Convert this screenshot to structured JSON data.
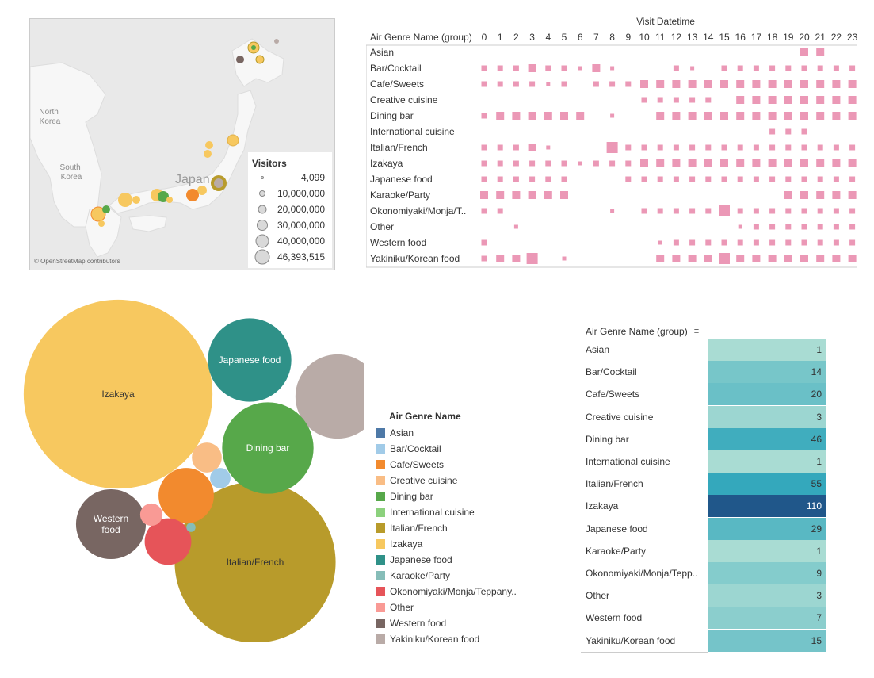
{
  "map": {
    "labels": {
      "north_korea": "North\nKorea",
      "south_korea": "South\nKorea",
      "japan": "Japan"
    },
    "attribution": "© OpenStreetMap contributors",
    "size_legend": {
      "title": "Visitors",
      "items": [
        "4,099",
        "10,000,000",
        "20,000,000",
        "30,000,000",
        "40,000,000",
        "46,393,515"
      ]
    }
  },
  "chart_data": [
    {
      "type": "heatmap",
      "title": "Visit Datetime",
      "row_header": "Air Genre Name (group)",
      "x": [
        "0",
        "1",
        "2",
        "3",
        "4",
        "5",
        "6",
        "7",
        "8",
        "9",
        "10",
        "11",
        "12",
        "13",
        "14",
        "15",
        "16",
        "17",
        "18",
        "19",
        "20",
        "21",
        "22",
        "23"
      ],
      "rows": [
        {
          "name": "Asian",
          "values": [
            0,
            0,
            0,
            0,
            0,
            0,
            0,
            0,
            0,
            0,
            0,
            0,
            0,
            0,
            0,
            0,
            0,
            0,
            0,
            0,
            3,
            3,
            0,
            0
          ]
        },
        {
          "name": "Bar/Cocktail",
          "values": [
            2,
            2,
            2,
            3,
            2,
            2,
            1,
            3,
            1,
            0,
            0,
            0,
            2,
            1,
            0,
            2,
            2,
            2,
            2,
            2,
            2,
            2,
            2,
            2
          ]
        },
        {
          "name": "Cafe/Sweets",
          "values": [
            2,
            2,
            2,
            2,
            1,
            2,
            0,
            2,
            2,
            2,
            3,
            3,
            3,
            3,
            3,
            3,
            3,
            3,
            3,
            3,
            3,
            3,
            3,
            3
          ]
        },
        {
          "name": "Creative cuisine",
          "values": [
            0,
            0,
            0,
            0,
            0,
            0,
            0,
            0,
            0,
            0,
            2,
            2,
            2,
            2,
            2,
            0,
            3,
            3,
            3,
            3,
            3,
            3,
            3,
            3
          ]
        },
        {
          "name": "Dining bar",
          "values": [
            2,
            3,
            3,
            3,
            3,
            3,
            3,
            0,
            1,
            0,
            0,
            3,
            3,
            3,
            3,
            3,
            3,
            3,
            3,
            3,
            3,
            3,
            3,
            3
          ]
        },
        {
          "name": "International cuisine",
          "values": [
            0,
            0,
            0,
            0,
            0,
            0,
            0,
            0,
            0,
            0,
            0,
            0,
            0,
            0,
            0,
            0,
            0,
            0,
            2,
            2,
            2,
            0,
            0,
            0
          ]
        },
        {
          "name": "Italian/French",
          "values": [
            2,
            2,
            2,
            3,
            1,
            0,
            0,
            0,
            4,
            2,
            2,
            2,
            2,
            2,
            2,
            2,
            2,
            2,
            2,
            2,
            2,
            2,
            2,
            2
          ]
        },
        {
          "name": "Izakaya",
          "values": [
            2,
            2,
            2,
            2,
            2,
            2,
            1,
            2,
            2,
            2,
            3,
            3,
            3,
            3,
            3,
            3,
            3,
            3,
            3,
            3,
            3,
            3,
            3,
            3
          ]
        },
        {
          "name": "Japanese food",
          "values": [
            2,
            2,
            2,
            2,
            2,
            2,
            0,
            0,
            0,
            2,
            2,
            2,
            2,
            2,
            2,
            2,
            2,
            2,
            2,
            2,
            2,
            2,
            2,
            2
          ]
        },
        {
          "name": "Karaoke/Party",
          "values": [
            3,
            3,
            3,
            3,
            3,
            3,
            0,
            0,
            0,
            0,
            0,
            0,
            0,
            0,
            0,
            0,
            0,
            0,
            0,
            3,
            3,
            3,
            3,
            3
          ]
        },
        {
          "name": "Okonomiyaki/Monja/T..",
          "values": [
            2,
            2,
            0,
            0,
            0,
            0,
            0,
            0,
            1,
            0,
            2,
            2,
            2,
            2,
            2,
            4,
            2,
            2,
            2,
            2,
            2,
            2,
            2,
            2
          ]
        },
        {
          "name": "Other",
          "values": [
            0,
            0,
            1,
            0,
            0,
            0,
            0,
            0,
            0,
            0,
            0,
            0,
            0,
            0,
            0,
            0,
            1,
            2,
            2,
            2,
            2,
            2,
            2,
            2
          ]
        },
        {
          "name": "Western food",
          "values": [
            2,
            0,
            0,
            0,
            0,
            0,
            0,
            0,
            0,
            0,
            0,
            1,
            2,
            2,
            2,
            2,
            2,
            2,
            2,
            2,
            2,
            2,
            2,
            2
          ]
        },
        {
          "name": "Yakiniku/Korean food",
          "values": [
            2,
            3,
            3,
            4,
            0,
            1,
            0,
            0,
            0,
            0,
            0,
            3,
            3,
            3,
            3,
            4,
            3,
            3,
            3,
            3,
            3,
            3,
            3,
            3
          ]
        }
      ],
      "color": "#eb98b6"
    },
    {
      "type": "bubble",
      "series": [
        {
          "name": "Izakaya",
          "value": 1280,
          "color": "#f7c85f",
          "label": "Izakaya"
        },
        {
          "name": "Italian/French",
          "value": 930,
          "color": "#b89b2b",
          "label": "Italian/French"
        },
        {
          "name": "Yakiniku/Korean food",
          "value": 255,
          "color": "#b9aba7",
          "label": ""
        },
        {
          "name": "Dining bar",
          "value": 300,
          "color": "#57a84a",
          "label": "Dining bar"
        },
        {
          "name": "Japanese food",
          "value": 250,
          "color": "#2f9188",
          "label": "Japanese food"
        },
        {
          "name": "Western food",
          "value": 175,
          "color": "#786662",
          "label": "Western\nfood"
        },
        {
          "name": "Cafe/Sweets",
          "value": 110,
          "color": "#f28a2e",
          "label": ""
        },
        {
          "name": "Okonomiyaki/Monja/Teppanyaki",
          "value": 78,
          "color": "#e65459",
          "label": ""
        },
        {
          "name": "Creative cuisine",
          "value": 32,
          "color": "#f9bd85",
          "label": ""
        },
        {
          "name": "Other",
          "value": 18,
          "color": "#f99a95",
          "label": ""
        },
        {
          "name": "Bar/Cocktail",
          "value": 15,
          "color": "#a1cbe8",
          "label": ""
        },
        {
          "name": "Karaoke/Party",
          "value": 3,
          "color": "#86bdb8",
          "label": ""
        }
      ],
      "legend": {
        "title": "Air Genre Name",
        "items": [
          {
            "name": "Asian",
            "color": "#4e79a7"
          },
          {
            "name": "Bar/Cocktail",
            "color": "#a1cbe8"
          },
          {
            "name": "Cafe/Sweets",
            "color": "#f28a2e"
          },
          {
            "name": "Creative cuisine",
            "color": "#f9bd85"
          },
          {
            "name": "Dining bar",
            "color": "#57a84a"
          },
          {
            "name": "International cuisine",
            "color": "#8cd17d"
          },
          {
            "name": "Italian/French",
            "color": "#b89b2b"
          },
          {
            "name": "Izakaya",
            "color": "#f7c85f"
          },
          {
            "name": "Japanese food",
            "color": "#2f9188"
          },
          {
            "name": "Karaoke/Party",
            "color": "#86bdb8"
          },
          {
            "name": "Okonomiyaki/Monja/Teppany..",
            "color": "#e65459"
          },
          {
            "name": "Other",
            "color": "#f99a95"
          },
          {
            "name": "Western food",
            "color": "#786662"
          },
          {
            "name": "Yakiniku/Korean food",
            "color": "#b9aba7"
          }
        ]
      }
    },
    {
      "type": "table",
      "header": "Air Genre Name (group)",
      "rows": [
        {
          "name": "Asian",
          "value": 1
        },
        {
          "name": "Bar/Cocktail",
          "value": 14
        },
        {
          "name": "Cafe/Sweets",
          "value": 20
        },
        {
          "name": "Creative cuisine",
          "value": 3
        },
        {
          "name": "Dining bar",
          "value": 46
        },
        {
          "name": "International cuisine",
          "value": 1
        },
        {
          "name": "Italian/French",
          "value": 55
        },
        {
          "name": "Izakaya",
          "value": 110
        },
        {
          "name": "Japanese food",
          "value": 29
        },
        {
          "name": "Karaoke/Party",
          "value": 1
        },
        {
          "name": "Okonomiyaki/Monja/Tepp..",
          "value": 9
        },
        {
          "name": "Other",
          "value": 3
        },
        {
          "name": "Western food",
          "value": 7
        },
        {
          "name": "Yakiniku/Korean food",
          "value": 15
        }
      ]
    }
  ]
}
